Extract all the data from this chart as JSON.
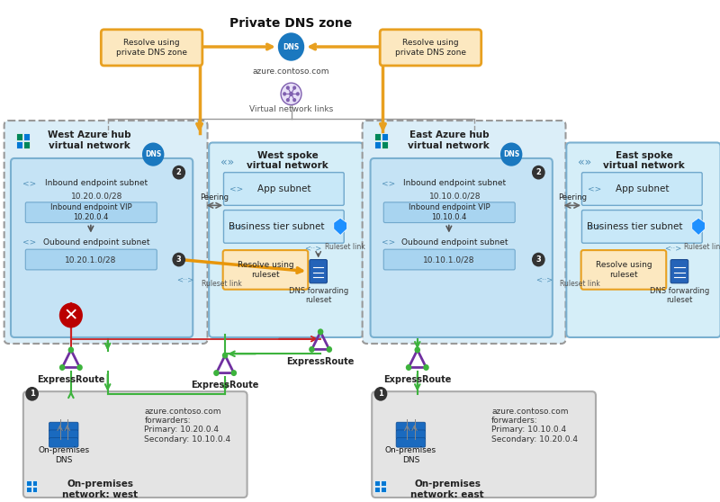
{
  "title": "Private DNS zone",
  "bg_color": "#ffffff",
  "dns_zone_color": "#e8a020",
  "orange_fill": "#fce8c0",
  "hub_outer_color": "#d0e8f8",
  "hub_outer_edge": "#888888",
  "hub_inner_color": "#c0dff5",
  "hub_inner_edge": "#70a8cc",
  "spoke_outer_color": "#d8f0fc",
  "spoke_outer_edge": "#70a8cc",
  "spoke_inner_color": "#c8e8f8",
  "spoke_inner_edge": "#70a8cc",
  "subnet_box_color": "#a8d4f0",
  "subnet_box_edge": "#70a8cc",
  "on_prem_fill": "#e4e4e4",
  "on_prem_edge": "#aaaaaa",
  "green": "#3db33d",
  "red": "#cc2222",
  "dark_red": "#aa0000",
  "orange_arrow": "#e8960a",
  "gray_line": "#999999",
  "blue_dns": "#1a78bf",
  "dark_num": "#333333",
  "west_on_prem_text": "azure.contoso.com\nforwarders:\nPrimary: 10.20.0.4\nSecondary: 10.10.0.4",
  "east_on_prem_text": "azure.contoso.com\nforwarders:\nPrimary: 10.10.0.4\nSecondary: 10.20.0.4"
}
